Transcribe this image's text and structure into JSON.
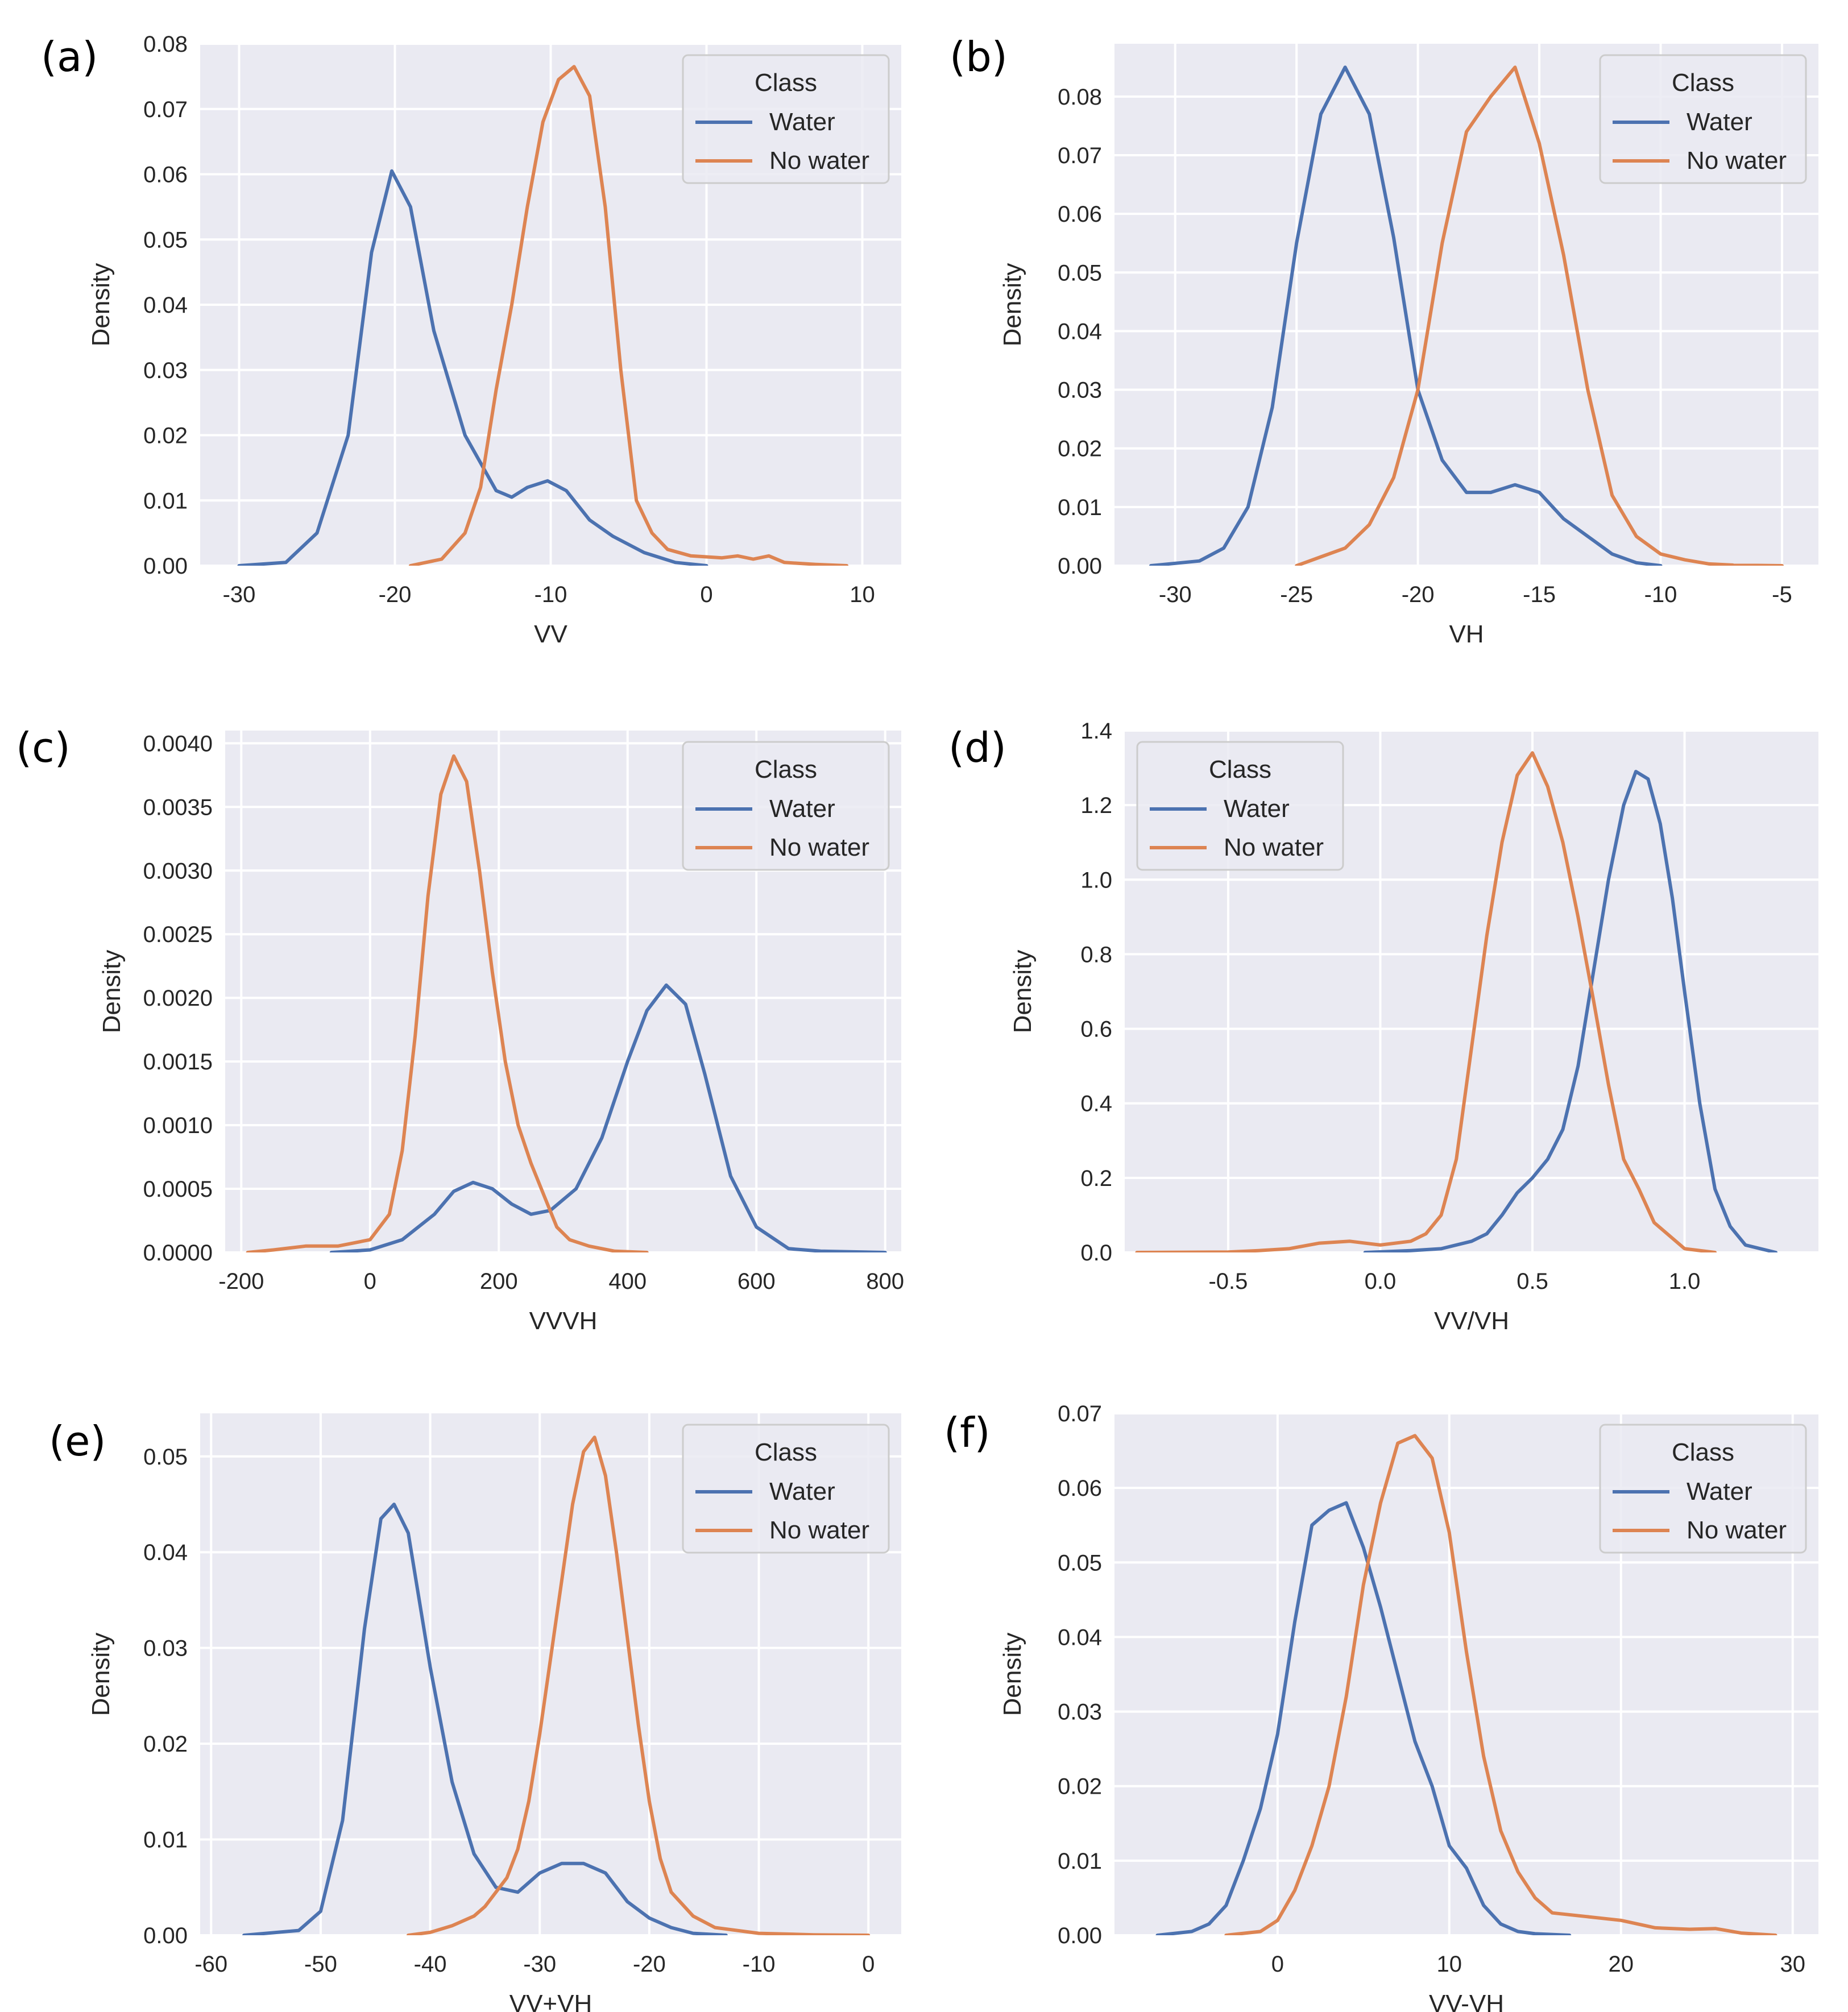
{
  "figure": {
    "description_label": "Density plots of SAR features by class"
  },
  "colors": {
    "water": "#4C72B0",
    "no_water": "#DD8452",
    "panel_bg": "#EAEAF2",
    "grid": "#FFFFFF"
  },
  "chart_data": [
    {
      "type": "line",
      "panel": "(a)",
      "xlabel": "VV",
      "ylabel": "Density",
      "xlim": [
        -32.5,
        12.5
      ],
      "ylim": [
        0,
        0.08
      ],
      "xticks": [
        -30,
        -20,
        -10,
        0,
        10
      ],
      "xtick_labels": [
        "-30",
        "-20",
        "-10",
        "0",
        "10"
      ],
      "yticks": [
        0,
        0.01,
        0.02,
        0.03,
        0.04,
        0.05,
        0.06,
        0.07,
        0.08
      ],
      "ytick_labels": [
        "0.00",
        "0.01",
        "0.02",
        "0.03",
        "0.04",
        "0.05",
        "0.06",
        "0.07",
        "0.08"
      ],
      "legend": {
        "title": "Class",
        "entries": [
          "Water",
          "No water"
        ],
        "position": "top-right"
      },
      "series": [
        {
          "name": "Water",
          "x": [
            -30,
            -27,
            -25,
            -23,
            -21.5,
            -20.2,
            -19,
            -17.5,
            -15.5,
            -13.5,
            -12.5,
            -11.5,
            -10.2,
            -9,
            -7.5,
            -6,
            -4,
            -2,
            0
          ],
          "y": [
            0,
            0.0005,
            0.005,
            0.02,
            0.048,
            0.0605,
            0.055,
            0.036,
            0.02,
            0.0115,
            0.0105,
            0.012,
            0.013,
            0.0115,
            0.007,
            0.0045,
            0.002,
            0.0005,
            0
          ]
        },
        {
          "name": "No water",
          "x": [
            -19,
            -17,
            -15.5,
            -14.5,
            -13.5,
            -12.5,
            -11.5,
            -10.5,
            -9.5,
            -8.5,
            -7.5,
            -6.5,
            -5.5,
            -4.5,
            -3.5,
            -2.5,
            -1,
            1,
            2,
            3,
            4,
            5,
            7,
            9
          ],
          "y": [
            0,
            0.001,
            0.005,
            0.012,
            0.027,
            0.04,
            0.055,
            0.068,
            0.0745,
            0.0765,
            0.072,
            0.055,
            0.03,
            0.01,
            0.005,
            0.0025,
            0.0015,
            0.0012,
            0.0015,
            0.001,
            0.0015,
            0.0005,
            0.0002,
            0
          ]
        }
      ]
    },
    {
      "type": "line",
      "panel": "(b)",
      "xlabel": "VH",
      "ylabel": "Density",
      "xlim": [
        -32.5,
        -3.5
      ],
      "ylim": [
        0,
        0.089
      ],
      "xticks": [
        -30,
        -25,
        -20,
        -15,
        -10,
        -5
      ],
      "xtick_labels": [
        "-30",
        "-25",
        "-20",
        "-15",
        "-10",
        "-5"
      ],
      "yticks": [
        0,
        0.01,
        0.02,
        0.03,
        0.04,
        0.05,
        0.06,
        0.07,
        0.08
      ],
      "ytick_labels": [
        "0.00",
        "0.01",
        "0.02",
        "0.03",
        "0.04",
        "0.05",
        "0.06",
        "0.07",
        "0.08"
      ],
      "legend": {
        "title": "Class",
        "entries": [
          "Water",
          "No water"
        ],
        "position": "top-right"
      },
      "series": [
        {
          "name": "Water",
          "x": [
            -31,
            -29,
            -28,
            -27,
            -26,
            -25,
            -24,
            -23,
            -22,
            -21,
            -20,
            -19,
            -18,
            -17,
            -16,
            -15,
            -14,
            -13,
            -12,
            -11,
            -10
          ],
          "y": [
            0,
            0.0008,
            0.003,
            0.01,
            0.027,
            0.055,
            0.077,
            0.085,
            0.077,
            0.056,
            0.03,
            0.018,
            0.0125,
            0.0125,
            0.0138,
            0.0125,
            0.008,
            0.005,
            0.002,
            0.0005,
            0
          ]
        },
        {
          "name": "No water",
          "x": [
            -25,
            -24,
            -23,
            -22,
            -21,
            -20,
            -19,
            -18,
            -17,
            -16,
            -15,
            -14,
            -13,
            -12,
            -11,
            -10,
            -9,
            -8,
            -7,
            -5
          ],
          "y": [
            0,
            0.0015,
            0.003,
            0.007,
            0.015,
            0.03,
            0.055,
            0.074,
            0.08,
            0.085,
            0.072,
            0.053,
            0.03,
            0.012,
            0.005,
            0.002,
            0.001,
            0.0003,
            0.0001,
            0
          ]
        }
      ]
    },
    {
      "type": "line",
      "panel": "(c)",
      "xlabel": "VVVH",
      "ylabel": "Density",
      "xlim": [
        -225,
        825
      ],
      "ylim": [
        0,
        0.0041
      ],
      "xticks": [
        -200,
        0,
        200,
        400,
        600,
        800
      ],
      "xtick_labels": [
        "-200",
        "0",
        "200",
        "400",
        "600",
        "800"
      ],
      "yticks": [
        0,
        0.0005,
        0.001,
        0.0015,
        0.002,
        0.0025,
        0.003,
        0.0035,
        0.004
      ],
      "ytick_labels": [
        "0.0000",
        "0.0005",
        "0.0010",
        "0.0015",
        "0.0020",
        "0.0025",
        "0.0030",
        "0.0035",
        "0.0040"
      ],
      "legend": {
        "title": "Class",
        "entries": [
          "Water",
          "No water"
        ],
        "position": "top-right"
      },
      "series": [
        {
          "name": "Water",
          "x": [
            -60,
            0,
            50,
            100,
            130,
            160,
            190,
            220,
            250,
            280,
            320,
            360,
            400,
            430,
            460,
            490,
            520,
            560,
            600,
            650,
            700,
            800
          ],
          "y": [
            0,
            2e-05,
            0.0001,
            0.0003,
            0.00048,
            0.00055,
            0.0005,
            0.00038,
            0.0003,
            0.00033,
            0.0005,
            0.0009,
            0.0015,
            0.0019,
            0.0021,
            0.00195,
            0.0014,
            0.0006,
            0.0002,
            3e-05,
            1e-05,
            0
          ]
        },
        {
          "name": "No water",
          "x": [
            -190,
            -150,
            -100,
            -50,
            0,
            30,
            50,
            70,
            90,
            110,
            130,
            150,
            170,
            190,
            210,
            230,
            250,
            270,
            290,
            310,
            340,
            380,
            430
          ],
          "y": [
            0,
            2e-05,
            5e-05,
            5e-05,
            0.0001,
            0.0003,
            0.0008,
            0.0017,
            0.0028,
            0.0036,
            0.0039,
            0.0037,
            0.003,
            0.0022,
            0.0015,
            0.001,
            0.0007,
            0.00045,
            0.0002,
            0.0001,
            5e-05,
            1e-05,
            0
          ]
        }
      ]
    },
    {
      "type": "line",
      "panel": "(d)",
      "xlabel": "VV/VH",
      "ylabel": "Density",
      "xlim": [
        -0.84,
        1.44
      ],
      "ylim": [
        0,
        1.4
      ],
      "xticks": [
        -0.5,
        0,
        0.5,
        1
      ],
      "xtick_labels": [
        "-0.5",
        "0.0",
        "0.5",
        "1.0"
      ],
      "yticks": [
        0,
        0.2,
        0.4,
        0.6,
        0.8,
        1.0,
        1.2,
        1.4
      ],
      "ytick_labels": [
        "0.0",
        "0.2",
        "0.4",
        "0.6",
        "0.8",
        "1.0",
        "1.2",
        "1.4"
      ],
      "legend": {
        "title": "Class",
        "entries": [
          "Water",
          "No water"
        ],
        "position": "top-left"
      },
      "series": [
        {
          "name": "Water",
          "x": [
            -0.05,
            0.1,
            0.2,
            0.3,
            0.35,
            0.4,
            0.45,
            0.5,
            0.55,
            0.6,
            0.65,
            0.7,
            0.75,
            0.8,
            0.84,
            0.88,
            0.92,
            0.96,
            1.0,
            1.05,
            1.1,
            1.15,
            1.2,
            1.3
          ],
          "y": [
            0,
            0.005,
            0.01,
            0.03,
            0.05,
            0.1,
            0.16,
            0.2,
            0.25,
            0.33,
            0.5,
            0.75,
            1.0,
            1.2,
            1.29,
            1.27,
            1.15,
            0.95,
            0.7,
            0.4,
            0.17,
            0.07,
            0.02,
            0
          ]
        },
        {
          "name": "No water",
          "x": [
            -0.8,
            -0.5,
            -0.4,
            -0.3,
            -0.2,
            -0.1,
            0,
            0.1,
            0.15,
            0.2,
            0.25,
            0.3,
            0.35,
            0.4,
            0.45,
            0.5,
            0.55,
            0.6,
            0.65,
            0.7,
            0.75,
            0.8,
            0.85,
            0.9,
            1.0,
            1.1
          ],
          "y": [
            0,
            0.001,
            0.005,
            0.01,
            0.025,
            0.03,
            0.02,
            0.03,
            0.05,
            0.1,
            0.25,
            0.55,
            0.85,
            1.1,
            1.28,
            1.34,
            1.25,
            1.1,
            0.9,
            0.68,
            0.45,
            0.25,
            0.17,
            0.08,
            0.01,
            0
          ]
        }
      ]
    },
    {
      "type": "line",
      "panel": "(e)",
      "xlabel": "VV+VH",
      "ylabel": "Density",
      "xlim": [
        -61,
        3
      ],
      "ylim": [
        0,
        0.0545
      ],
      "xticks": [
        -60,
        -50,
        -40,
        -30,
        -20,
        -10,
        0
      ],
      "xtick_labels": [
        "-60",
        "-50",
        "-40",
        "-30",
        "-20",
        "-10",
        "0"
      ],
      "yticks": [
        0,
        0.01,
        0.02,
        0.03,
        0.04,
        0.05
      ],
      "ytick_labels": [
        "0.00",
        "0.01",
        "0.02",
        "0.03",
        "0.04",
        "0.05"
      ],
      "legend": {
        "title": "Class",
        "entries": [
          "Water",
          "No water"
        ],
        "position": "top-right"
      },
      "series": [
        {
          "name": "Water",
          "x": [
            -57,
            -52,
            -50,
            -48,
            -46,
            -44.5,
            -43.3,
            -42,
            -40,
            -38,
            -36,
            -34,
            -32,
            -30,
            -28,
            -26,
            -24,
            -22,
            -20,
            -18,
            -16,
            -13
          ],
          "y": [
            0,
            0.0005,
            0.0025,
            0.012,
            0.032,
            0.0435,
            0.045,
            0.042,
            0.028,
            0.016,
            0.0085,
            0.005,
            0.0045,
            0.0065,
            0.0075,
            0.0075,
            0.0065,
            0.0035,
            0.0018,
            0.0008,
            0.0002,
            0
          ]
        },
        {
          "name": "No water",
          "x": [
            -42,
            -40,
            -38,
            -37,
            -36,
            -35,
            -34,
            -33,
            -32,
            -31,
            -30,
            -29,
            -28,
            -27,
            -26,
            -25,
            -24,
            -23,
            -22,
            -21,
            -20,
            -19,
            -18,
            -16,
            -14,
            -10,
            -5,
            0
          ],
          "y": [
            0,
            0.0003,
            0.001,
            0.0015,
            0.002,
            0.003,
            0.0045,
            0.006,
            0.009,
            0.014,
            0.021,
            0.029,
            0.037,
            0.045,
            0.0505,
            0.052,
            0.048,
            0.04,
            0.031,
            0.022,
            0.014,
            0.008,
            0.0045,
            0.002,
            0.0008,
            0.0002,
            5e-05,
            0
          ]
        }
      ]
    },
    {
      "type": "line",
      "panel": "(f)",
      "xlabel": "VV-VH",
      "ylabel": "Density",
      "xlim": [
        -9.5,
        31.5
      ],
      "ylim": [
        0,
        0.07
      ],
      "xticks": [
        0,
        10,
        20,
        30
      ],
      "xtick_labels": [
        "0",
        "10",
        "20",
        "30"
      ],
      "yticks": [
        0,
        0.01,
        0.02,
        0.03,
        0.04,
        0.05,
        0.06,
        0.07
      ],
      "ytick_labels": [
        "0.00",
        "0.01",
        "0.02",
        "0.03",
        "0.04",
        "0.05",
        "0.06",
        "0.07"
      ],
      "legend": {
        "title": "Class",
        "entries": [
          "Water",
          "No water"
        ],
        "position": "top-right"
      },
      "series": [
        {
          "name": "Water",
          "x": [
            -7,
            -5,
            -4,
            -3,
            -2,
            -1,
            0,
            1,
            2,
            3,
            4,
            5,
            6,
            7,
            8,
            9,
            10,
            11,
            12,
            13,
            14,
            15,
            17
          ],
          "y": [
            0,
            0.0005,
            0.0015,
            0.004,
            0.01,
            0.017,
            0.027,
            0.042,
            0.055,
            0.057,
            0.058,
            0.052,
            0.044,
            0.035,
            0.026,
            0.02,
            0.012,
            0.009,
            0.004,
            0.0015,
            0.0005,
            0.0002,
            0
          ]
        },
        {
          "name": "No water",
          "x": [
            -3,
            -1,
            0,
            1,
            2,
            3,
            4,
            5,
            6,
            7,
            8,
            9,
            10,
            11,
            12,
            13,
            14,
            15,
            16,
            18,
            20,
            22,
            24,
            25.5,
            27,
            29
          ],
          "y": [
            0,
            0.0005,
            0.002,
            0.006,
            0.012,
            0.02,
            0.032,
            0.047,
            0.058,
            0.066,
            0.067,
            0.064,
            0.054,
            0.038,
            0.024,
            0.014,
            0.0085,
            0.005,
            0.003,
            0.0025,
            0.002,
            0.001,
            0.0008,
            0.0009,
            0.0003,
            0
          ]
        }
      ]
    }
  ]
}
